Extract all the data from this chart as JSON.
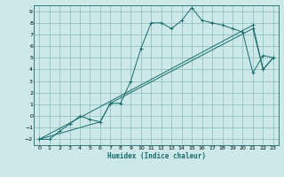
{
  "xlabel": "Humidex (Indice chaleur)",
  "bg_color": "#cce8e8",
  "grid_color": "#88bbbb",
  "line_color": "#1a6b6b",
  "xlim": [
    -0.5,
    23.5
  ],
  "ylim": [
    -2.5,
    9.5
  ],
  "xticks": [
    0,
    1,
    2,
    3,
    4,
    5,
    6,
    7,
    8,
    9,
    10,
    11,
    12,
    13,
    14,
    15,
    16,
    17,
    18,
    19,
    20,
    21,
    22,
    23
  ],
  "yticks": [
    -2,
    -1,
    0,
    1,
    2,
    3,
    4,
    5,
    6,
    7,
    8,
    9
  ],
  "series1_x": [
    0,
    1,
    2,
    3,
    4,
    5,
    6,
    7,
    8,
    9,
    10,
    11,
    12,
    13,
    14,
    15,
    16,
    17,
    18,
    19,
    20,
    21,
    22,
    23
  ],
  "series1_y": [
    -2,
    -2,
    -1.3,
    -0.7,
    0.0,
    -0.3,
    -0.5,
    1.1,
    1.1,
    3.0,
    5.8,
    8.0,
    8.0,
    7.5,
    8.2,
    9.3,
    8.2,
    8.0,
    7.8,
    7.5,
    7.2,
    3.7,
    5.2,
    5.0
  ],
  "series2_x": [
    0,
    21,
    22,
    23
  ],
  "series2_y": [
    -2,
    7.8,
    4.0,
    5.0
  ],
  "series3_x": [
    0,
    6,
    7,
    21,
    22,
    23
  ],
  "series3_y": [
    -2,
    -0.5,
    1.1,
    7.5,
    4.0,
    5.0
  ]
}
